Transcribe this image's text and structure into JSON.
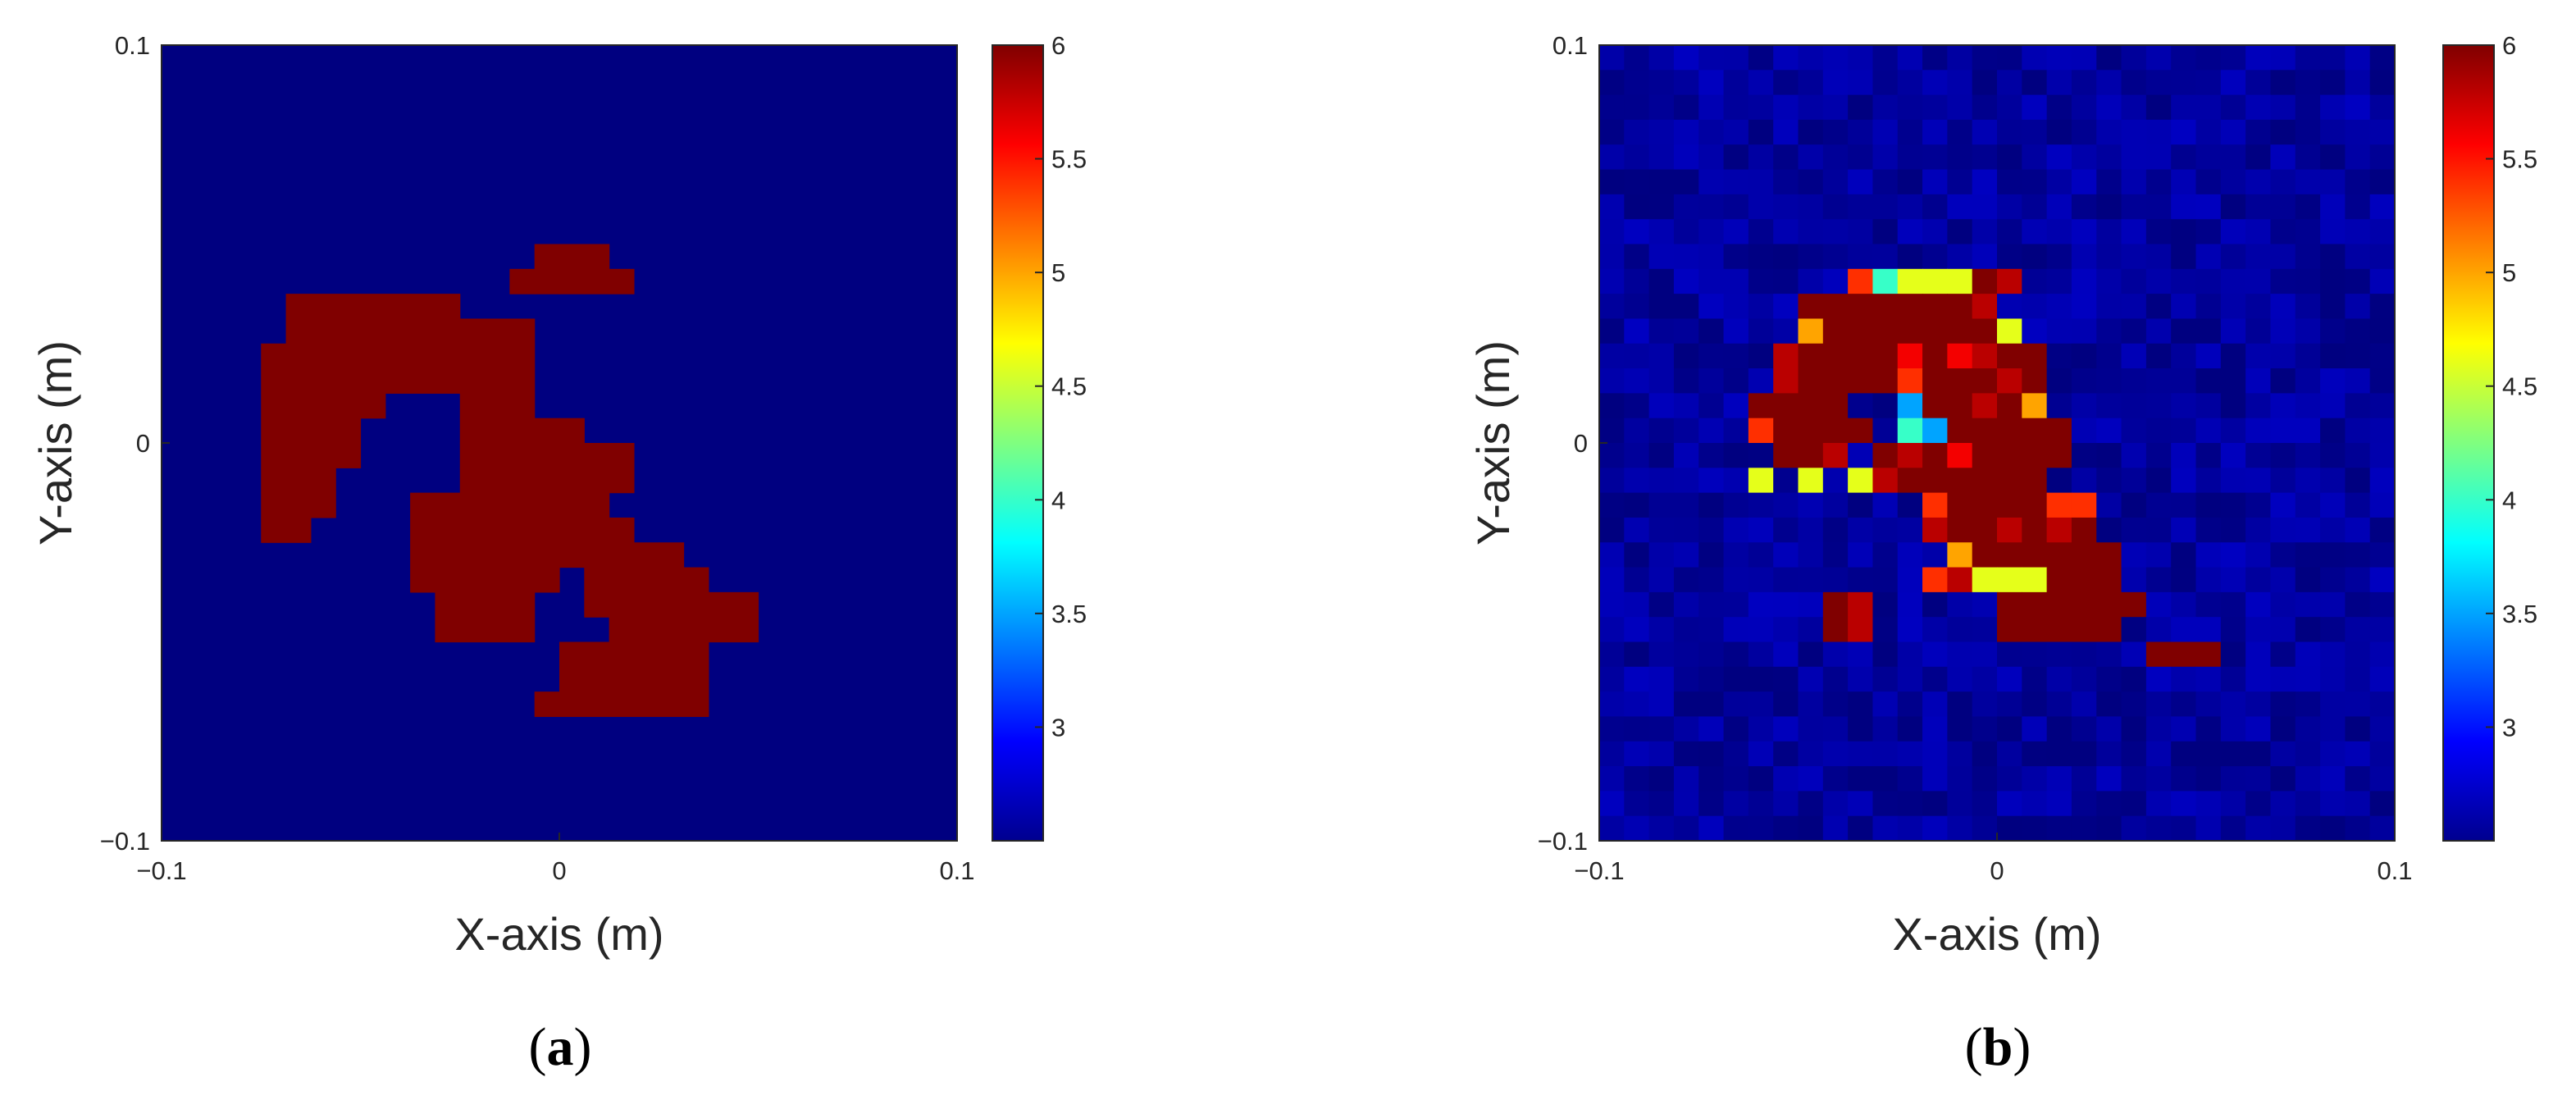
{
  "chart_data": [
    {
      "type": "heatmap",
      "panel_label": "a",
      "title": "",
      "xlabel": "X-axis (m)",
      "ylabel": "Y-axis (m)",
      "xlim": [
        -0.1,
        0.1
      ],
      "ylim": [
        -0.1,
        0.1
      ],
      "xticks": [
        "−0.1",
        "0",
        "0.1"
      ],
      "yticks": [
        "0.1",
        "0",
        "−0.1"
      ],
      "colormap": "jet",
      "clim": [
        2.5,
        6
      ],
      "colorbar_ticks": [
        "3",
        "3.5",
        "4",
        "4.5",
        "5",
        "5.5",
        "6"
      ],
      "background_value": 2.5,
      "grid_size": [
        32,
        32
      ],
      "rows": [
        "................................",
        "................................",
        "................................",
        "................................",
        "................................",
        "................................",
        "................................",
        "................................",
        "...............###..............",
        "..............#####.............",
        ".....#######....................",
        ".....##########.................",
        "....###########.................",
        "....###########.................",
        "....#####...###.................",
        "....####....#####...............",
        "....####....#######.............",
        "....###.....#######.............",
        "....###...########..............",
        "....##....#########.............",
        "..........###########...........",
        "..........######.#####..........",
        "...........####..#######........",
        "...........####...######........",
        "................######..........",
        "................######..........",
        "...............#######..........",
        "................................",
        "................................",
        "................................",
        "................................",
        "................................"
      ]
    },
    {
      "type": "heatmap",
      "panel_label": "b",
      "title": "",
      "xlabel": "X-axis (m)",
      "ylabel": "Y-axis (m)",
      "xlim": [
        -0.1,
        0.1
      ],
      "ylim": [
        -0.1,
        0.1
      ],
      "xticks": [
        "−0.1",
        "0",
        "0.1"
      ],
      "yticks": [
        "0.1",
        "0",
        "−0.1"
      ],
      "colormap": "jet",
      "clim": [
        2.5,
        6
      ],
      "colorbar_ticks": [
        "3",
        "3.5",
        "4",
        "4.5",
        "5",
        "5.5",
        "6"
      ],
      "background_value": 2.6,
      "grid_size": [
        32,
        32
      ],
      "legend": "0=2.7 1=3.5 2=4.0 3=4.6 4=5.0 5=5.4 6=5.6 7=5.8 8=6.0",
      "rows": [
        "................................",
        "................................",
        "................................",
        "................................",
        "................................",
        "................................",
        "................................",
        "................................",
        "................................",
        "..........5233387...............",
        "........88888887................",
        "........488888883...............",
        ".......78888686788..............",
        ".......78888588878..............",
        "......8888..188784..............",
        "......58888.2188888.............",
        ".......887.87868888.............",
        "......3.3.37888888..............",
        ".............5888855............",
        ".............7887878............",
        "..............4888888...........",
        ".............57333888...........",
        ".........87.....888888..........",
        ".........87.....88888...........",
        "......................888.......",
        "................................",
        "................................",
        "................................",
        "................................",
        "................................",
        "................................",
        "................................"
      ]
    }
  ]
}
